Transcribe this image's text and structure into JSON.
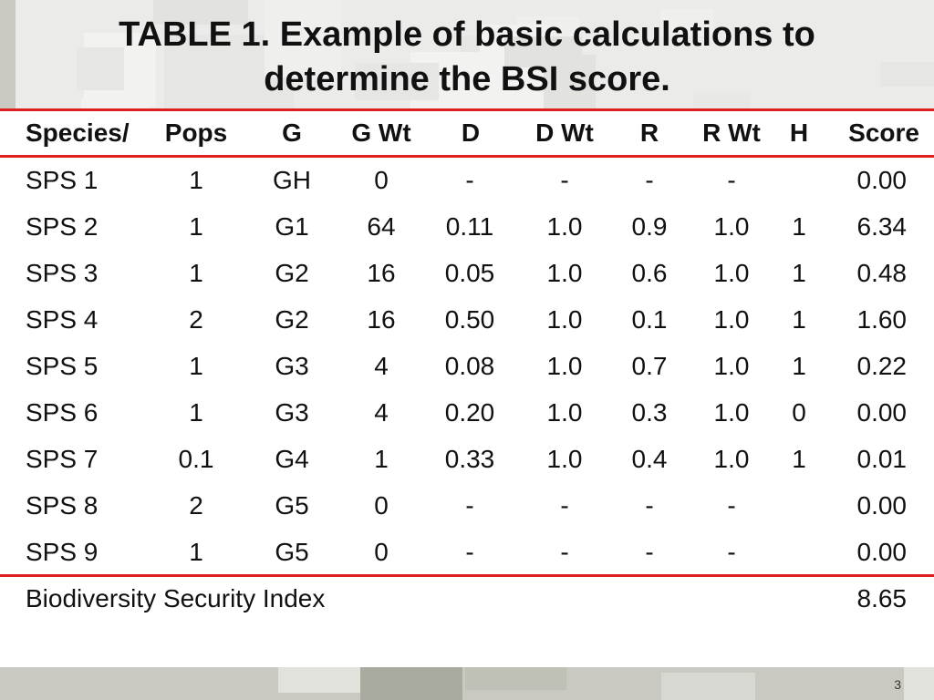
{
  "title_lines": [
    "TABLE 1.  Example of basic calculations to",
    "determine the BSI score."
  ],
  "colors": {
    "accent_rule": "#e02020",
    "background": "#c9c9c2",
    "camo": [
      "#b8bab0",
      "#d8d8d2",
      "#a9ab9f",
      "#e2e2dd",
      "#bfc1b6"
    ]
  },
  "table": {
    "headers": [
      "Species/",
      "Pops",
      "G",
      "G Wt",
      "D",
      "D Wt",
      "R",
      "R Wt",
      "H",
      "Score"
    ],
    "rows": [
      [
        "SPS 1",
        "1",
        "GH",
        "0",
        "-",
        "-",
        "-",
        "-",
        "",
        "0.00"
      ],
      [
        "SPS 2",
        "1",
        "G1",
        "64",
        "0.11",
        "1.0",
        "0.9",
        "1.0",
        "1",
        "6.34"
      ],
      [
        "SPS 3",
        "1",
        "G2",
        "16",
        "0.05",
        "1.0",
        "0.6",
        "1.0",
        "1",
        "0.48"
      ],
      [
        "SPS 4",
        "2",
        "G2",
        "16",
        "0.50",
        "1.0",
        "0.1",
        "1.0",
        "1",
        "1.60"
      ],
      [
        "SPS 5",
        "1",
        "G3",
        "4",
        "0.08",
        "1.0",
        "0.7",
        "1.0",
        "1",
        "0.22"
      ],
      [
        "SPS 6",
        "1",
        "G3",
        "4",
        "0.20",
        "1.0",
        "0.3",
        "1.0",
        "0",
        "0.00"
      ],
      [
        "SPS 7",
        "0.1",
        "G4",
        "1",
        "0.33",
        "1.0",
        "0.4",
        "1.0",
        "1",
        "0.01"
      ],
      [
        "SPS 8",
        "2",
        "G5",
        "0",
        "-",
        "-",
        "-",
        "-",
        "",
        "0.00"
      ],
      [
        "SPS 9",
        "1",
        "G5",
        "0",
        "-",
        "-",
        "-",
        "-",
        "",
        "0.00"
      ]
    ],
    "footer": {
      "label": "Biodiversity Security Index",
      "value": "8.65"
    }
  },
  "slide_number": "3"
}
